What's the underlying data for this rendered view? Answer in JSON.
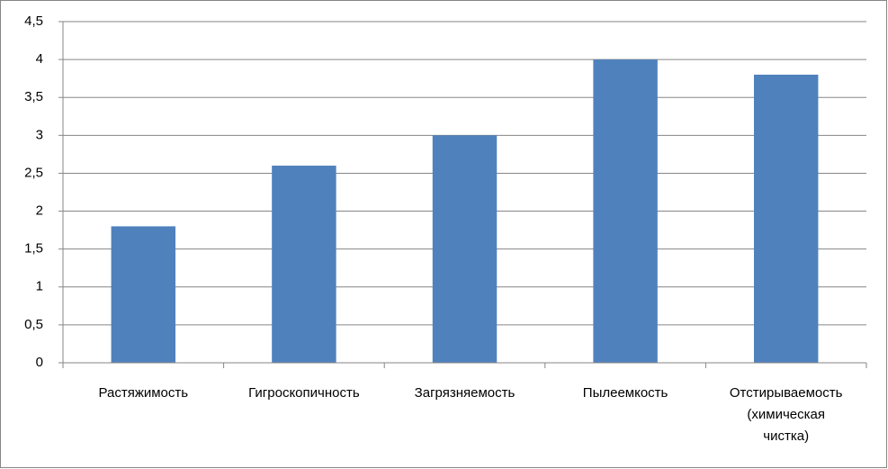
{
  "chart_data": {
    "type": "bar",
    "categories": [
      "Растяжимость",
      "Гигроскопичность",
      "Загрязняемость",
      "Пылеемкость",
      "Отстирываемость (химическая чистка)"
    ],
    "values": [
      1.8,
      2.6,
      3,
      4,
      3.8
    ],
    "color": "#4f81bd",
    "ylim": [
      0,
      4.5
    ],
    "yticks": [
      0,
      {
        "value": 0.5,
        "label": "0,5"
      },
      1,
      {
        "value": 1.5,
        "label": "1,5"
      },
      2,
      {
        "value": 2.5,
        "label": "2,5"
      },
      3,
      {
        "value": 3.5,
        "label": "3,5"
      },
      4,
      {
        "value": 4.5,
        "label": "4,5"
      }
    ],
    "grid": true
  }
}
